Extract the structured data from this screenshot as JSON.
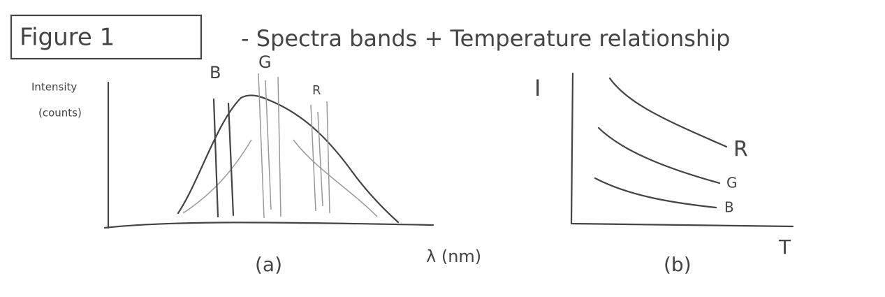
{
  "header": {
    "figure_label": "Figure 1",
    "title": "- Spectra bands + Temperature relationship"
  },
  "panel_a": {
    "y_label": [
      "Intensity",
      "(counts)"
    ],
    "x_label": "λ (nm)",
    "caption": "(a)",
    "bands": [
      "B",
      "G",
      "R"
    ]
  },
  "panel_b": {
    "y_label": "I",
    "x_label": "T",
    "caption": "(b)",
    "curves": [
      "R",
      "G",
      "B"
    ]
  }
}
